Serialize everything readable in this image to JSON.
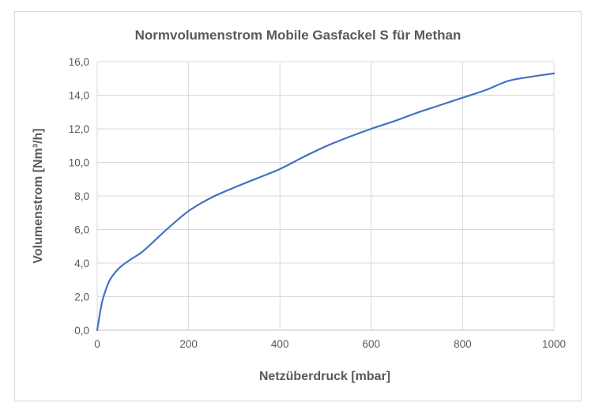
{
  "chart_data": {
    "type": "line",
    "title": "Normvolumenstrom Mobile Gasfackel S für Methan",
    "xlabel": "Netzüberdruck [mbar]",
    "ylabel": "Volumenstrom [Nm³/h]",
    "xlim": [
      0,
      1000
    ],
    "ylim": [
      0,
      16
    ],
    "x_ticks": [
      "0",
      "200",
      "400",
      "600",
      "800",
      "1000"
    ],
    "y_ticks": [
      "0,0",
      "2,0",
      "4,0",
      "6,0",
      "8,0",
      "10,0",
      "12,0",
      "14,0",
      "16,0"
    ],
    "grid": true,
    "legend": "none",
    "series": [
      {
        "color": "#4472c4",
        "x": [
          0,
          10,
          20,
          30,
          50,
          75,
          100,
          150,
          200,
          250,
          300,
          350,
          400,
          450,
          500,
          550,
          600,
          650,
          700,
          750,
          800,
          850,
          900,
          950,
          1000
        ],
        "values": [
          0.0,
          1.6,
          2.5,
          3.1,
          3.75,
          4.25,
          4.7,
          5.95,
          7.1,
          7.9,
          8.5,
          9.05,
          9.6,
          10.3,
          10.95,
          11.5,
          12.0,
          12.45,
          12.95,
          13.4,
          13.85,
          14.3,
          14.85,
          15.1,
          15.3
        ]
      }
    ]
  }
}
